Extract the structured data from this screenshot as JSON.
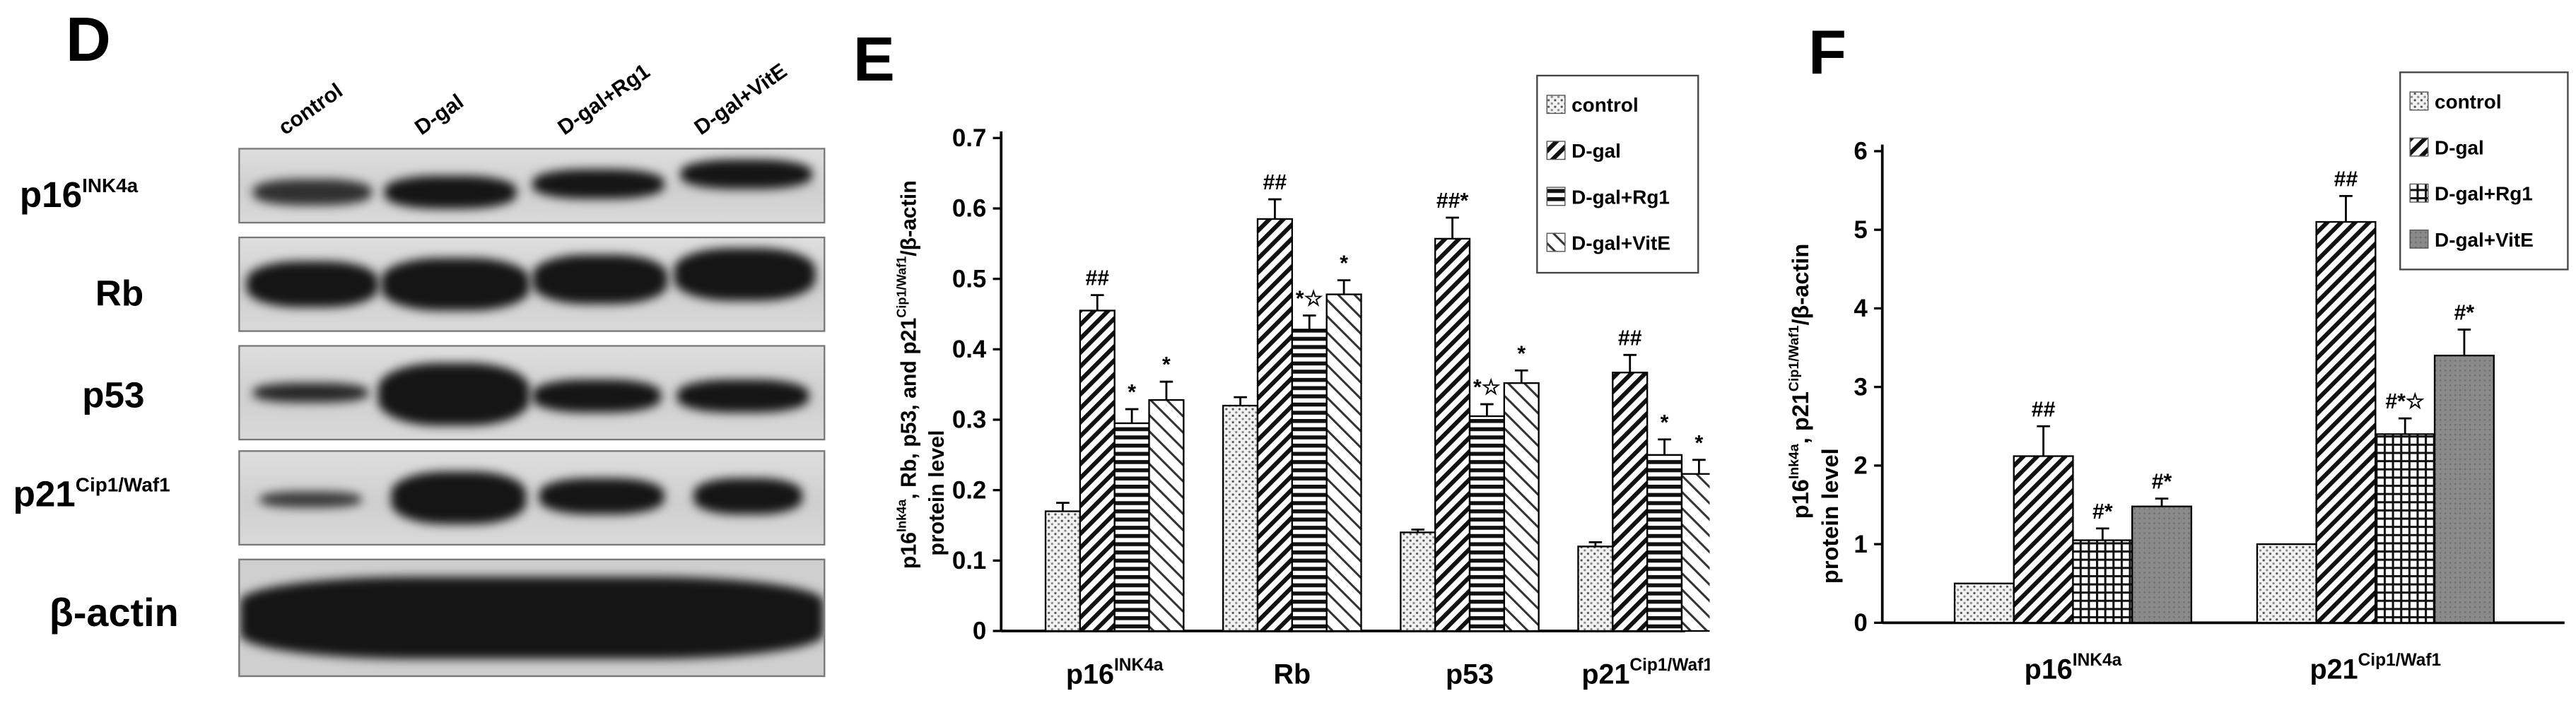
{
  "panel_D": {
    "label": "D",
    "lanes": [
      "control",
      "D-gal",
      "D-gal+Rg1",
      "D-gal+VitE"
    ],
    "rows": [
      {
        "main": "p16",
        "sup": "INK4a"
      },
      {
        "main": "Rb",
        "sup": ""
      },
      {
        "main": "p53",
        "sup": ""
      },
      {
        "main": "p21",
        "sup": "Cip1/Waf1"
      },
      {
        "main": "β-actin",
        "sup": ""
      }
    ]
  },
  "panel_E": {
    "label": "E"
  },
  "panel_F": {
    "label": "F"
  },
  "colors": {
    "axis": "#000000",
    "control_fill": "#dddddd",
    "dgal_fill": "#555555"
  },
  "chart_data": [
    {
      "type": "bar",
      "panel": "E",
      "categories": [
        "p16",
        "Rb",
        "p53",
        "p21"
      ],
      "category_superscripts": [
        "INK4a",
        "",
        "",
        "Cip1/Waf1"
      ],
      "ylabel": "p16Ink4a, Rb, p53, and p21Cip1/Waf1/β-actin protein level",
      "ylabel_line1": {
        "a": "p16",
        "a_sup": "Ink4a",
        "b": ", Rb, p53, and p21",
        "b_sup": "Cip1/Waf1",
        "c": "/β-actin"
      },
      "ylabel_line2": "protein level",
      "ylim": [
        0,
        0.7
      ],
      "yticks": [
        "0",
        "0.1",
        "0.2",
        "0.3",
        "0.4",
        "0.5",
        "0.6",
        "0.7"
      ],
      "legend_position": "top-right",
      "series": [
        {
          "name": "control",
          "pattern": "dots",
          "values": [
            0.17,
            0.32,
            0.14,
            0.12
          ],
          "errors": [
            0.012,
            0.012,
            0.004,
            0.006
          ],
          "annotations": [
            "",
            "",
            "",
            ""
          ]
        },
        {
          "name": "D-gal",
          "pattern": "hatch",
          "values": [
            0.455,
            0.585,
            0.557,
            0.367
          ],
          "errors": [
            0.022,
            0.028,
            0.03,
            0.025
          ],
          "annotations": [
            "##",
            "##",
            "##*",
            "##"
          ]
        },
        {
          "name": "D-gal+Rg1",
          "pattern": "hlines",
          "values": [
            0.295,
            0.428,
            0.305,
            0.25
          ],
          "errors": [
            0.02,
            0.02,
            0.017,
            0.022
          ],
          "annotations": [
            "*",
            "*☆",
            "*☆",
            "*"
          ]
        },
        {
          "name": "D-gal+VitE",
          "pattern": "crosshatch",
          "values": [
            0.328,
            0.478,
            0.352,
            0.223
          ],
          "errors": [
            0.026,
            0.02,
            0.018,
            0.02
          ],
          "annotations": [
            "*",
            "*",
            "*",
            "*"
          ]
        }
      ]
    },
    {
      "type": "bar",
      "panel": "F",
      "categories": [
        "p16",
        "p21"
      ],
      "category_superscripts": [
        "INK4a",
        "Cip1/Waf1"
      ],
      "ylabel": "p16Ink4a, p21Cip1/Waf1/β-actin protein level",
      "ylabel_line1": {
        "a": "p16",
        "a_sup": "Ink4a",
        "b": ", p21",
        "b_sup": "Cip1/Waf1",
        "c": "/β-actin"
      },
      "ylabel_line2": "protein level",
      "ylim": [
        0,
        6
      ],
      "yticks": [
        "0",
        "1",
        "2",
        "3",
        "4",
        "5",
        "6"
      ],
      "legend_position": "top-right",
      "series": [
        {
          "name": "control",
          "pattern": "dots",
          "values": [
            0.5,
            1.0
          ],
          "errors": [
            0,
            0
          ],
          "annotations": [
            "",
            ""
          ]
        },
        {
          "name": "D-gal",
          "pattern": "hatch",
          "values": [
            2.12,
            5.1
          ],
          "errors": [
            0.38,
            0.33
          ],
          "annotations": [
            "##",
            "##"
          ]
        },
        {
          "name": "D-gal+Rg1",
          "pattern": "grid",
          "values": [
            1.05,
            2.4
          ],
          "errors": [
            0.15,
            0.2
          ],
          "annotations": [
            "#*",
            "#*☆"
          ]
        },
        {
          "name": "D-gal+VitE",
          "pattern": "gray",
          "values": [
            1.48,
            3.4
          ],
          "errors": [
            0.1,
            0.33
          ],
          "annotations": [
            "#*",
            "#*"
          ]
        }
      ]
    }
  ]
}
